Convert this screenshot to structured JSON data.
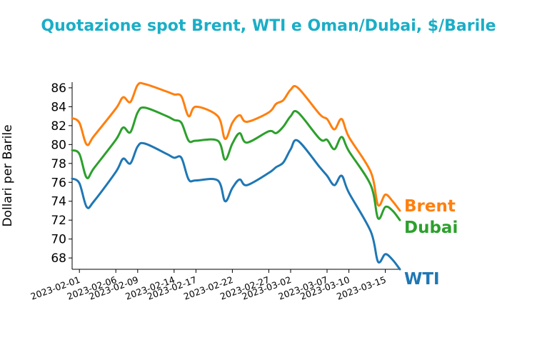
{
  "chart_data": {
    "type": "line",
    "title": "Quotazione spot Brent, WTI e Oman/Dubai, $/Barile",
    "title_color": "#1aaec7",
    "xlabel": "",
    "ylabel": "Dollari per Barile",
    "ylim": [
      66.8,
      86.6
    ],
    "xlim": [
      "2023-01-31",
      "2023-03-17"
    ],
    "yticks": [
      68,
      70,
      72,
      74,
      76,
      78,
      80,
      82,
      84,
      86
    ],
    "xticks": [
      "2023-02-01",
      "2023-02-06",
      "2023-02-09",
      "2023-02-14",
      "2023-02-17",
      "2023-02-22",
      "2023-02-27",
      "2023-03-02",
      "2023-03-07",
      "2023-03-10",
      "2023-03-15"
    ],
    "grid": false,
    "legend": "end-of-line labels",
    "x": [
      "2023-01-31",
      "2023-02-01",
      "2023-02-02",
      "2023-02-03",
      "2023-02-06",
      "2023-02-07",
      "2023-02-08",
      "2023-02-09",
      "2023-02-10",
      "2023-02-13",
      "2023-02-14",
      "2023-02-15",
      "2023-02-16",
      "2023-02-17",
      "2023-02-20",
      "2023-02-21",
      "2023-02-22",
      "2023-02-23",
      "2023-02-24",
      "2023-02-27",
      "2023-02-28",
      "2023-03-01",
      "2023-03-02",
      "2023-03-03",
      "2023-03-06",
      "2023-03-07",
      "2023-03-08",
      "2023-03-09",
      "2023-03-10",
      "2023-03-13",
      "2023-03-14",
      "2023-03-15",
      "2023-03-16",
      "2023-03-17"
    ],
    "series": [
      {
        "name": "Brent",
        "color": "#ff7f0e",
        "values": [
          82.8,
          82.3,
          80.0,
          80.9,
          83.8,
          85.0,
          84.5,
          86.3,
          86.4,
          85.6,
          85.3,
          85.1,
          83.0,
          84.0,
          83.0,
          80.6,
          82.3,
          83.1,
          82.4,
          83.4,
          84.3,
          84.7,
          85.8,
          86.0,
          83.2,
          82.7,
          81.6,
          82.7,
          80.8,
          77.1,
          73.6,
          74.7,
          74.0,
          73.0
        ]
      },
      {
        "name": "Dubai",
        "color": "#2ca02c",
        "values": [
          79.4,
          79.0,
          76.5,
          77.5,
          80.5,
          81.8,
          81.3,
          83.4,
          83.9,
          83.0,
          82.6,
          82.3,
          80.4,
          80.4,
          80.4,
          78.4,
          80.1,
          81.2,
          80.2,
          81.4,
          81.2,
          81.9,
          83.0,
          83.4,
          80.6,
          80.5,
          79.5,
          80.8,
          79.3,
          75.7,
          72.2,
          73.4,
          73.0,
          72.0
        ]
      },
      {
        "name": "WTI",
        "color": "#1f77b4",
        "values": [
          76.4,
          75.9,
          73.4,
          74.0,
          77.1,
          78.5,
          78.0,
          79.8,
          80.1,
          79.0,
          78.6,
          78.6,
          76.3,
          76.2,
          76.2,
          74.0,
          75.4,
          76.3,
          75.7,
          77.0,
          77.6,
          78.1,
          79.5,
          80.4,
          77.6,
          76.7,
          75.7,
          76.7,
          74.9,
          70.8,
          67.6,
          68.4,
          67.8,
          66.8
        ]
      }
    ]
  }
}
